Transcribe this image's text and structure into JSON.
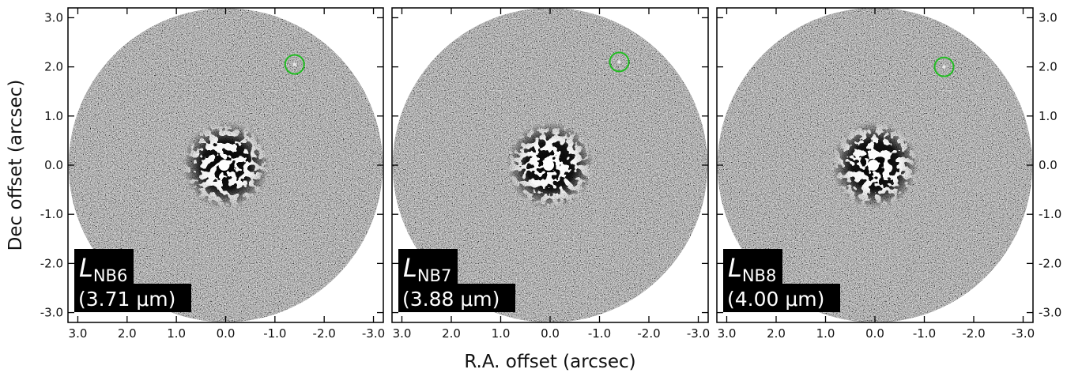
{
  "figure": {
    "xlabel": "R.A. offset (arcsec)",
    "ylabel": "Dec offset (arcsec)",
    "x_ticks": [
      "3.0",
      "2.0",
      "1.0",
      "0.0",
      "-1.0",
      "-2.0",
      "-3.0"
    ],
    "y_ticks": [
      "3.0",
      "2.0",
      "1.0",
      "0.0",
      "-1.0",
      "-2.0",
      "-3.0"
    ],
    "ra_range": [
      3.2,
      -3.2
    ],
    "dec_range": [
      -3.2,
      3.2
    ],
    "companion_marker_color": "#22bb22",
    "panels": [
      {
        "band_symbol": "L",
        "band_subscript": "NB6",
        "wavelength": "(3.71 μm)",
        "companion_offset": {
          "ra": -1.4,
          "dec": 2.05
        }
      },
      {
        "band_symbol": "L",
        "band_subscript": "NB7",
        "wavelength": "(3.88 μm)",
        "companion_offset": {
          "ra": -1.4,
          "dec": 2.1
        }
      },
      {
        "band_symbol": "L",
        "band_subscript": "NB8",
        "wavelength": "(4.00 μm)",
        "companion_offset": {
          "ra": -1.4,
          "dec": 2.0
        }
      }
    ]
  }
}
